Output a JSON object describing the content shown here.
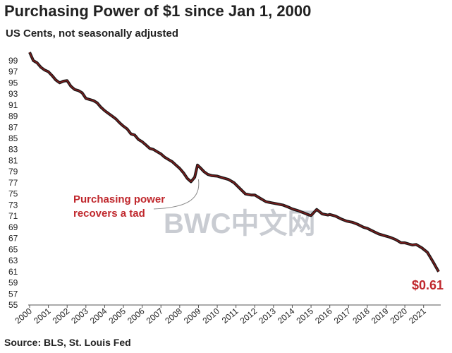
{
  "chart_data": {
    "type": "line",
    "title": "Purchasing  Power of $1 since Jan 1, 2000",
    "subtitle": "US Cents, not seasonally adjusted",
    "source": "Source: BLS, St. Louis Fed",
    "xlabel": "",
    "ylabel": "",
    "xlim": [
      2000,
      2021.8
    ],
    "ylim": [
      55,
      100
    ],
    "grid": false,
    "y_ticks": [
      "99",
      "97",
      "95",
      "93",
      "91",
      "89",
      "87",
      "85",
      "83",
      "81",
      "79",
      "77",
      "75",
      "73",
      "71",
      "69",
      "67",
      "65",
      "63",
      "61",
      "59",
      "57",
      "55"
    ],
    "x_ticks": [
      "2000",
      "2001",
      "2002",
      "2003",
      "2004",
      "2005",
      "2006",
      "2007",
      "2008",
      "2009",
      "2010",
      "2011",
      "2012",
      "2013",
      "2014",
      "2015",
      "2016",
      "2017",
      "2018",
      "2019",
      "2020",
      "2021"
    ],
    "series": [
      {
        "name": "Purchasing power of $1",
        "color": "#8b1a1a",
        "x": [
          2000.0,
          2000.2,
          2000.4,
          2000.6,
          2000.8,
          2001.0,
          2001.2,
          2001.4,
          2001.6,
          2001.8,
          2002.0,
          2002.2,
          2002.4,
          2002.6,
          2002.8,
          2003.0,
          2003.2,
          2003.4,
          2003.6,
          2003.8,
          2004.0,
          2004.2,
          2004.4,
          2004.6,
          2004.8,
          2005.0,
          2005.2,
          2005.4,
          2005.6,
          2005.8,
          2006.0,
          2006.2,
          2006.4,
          2006.6,
          2006.8,
          2007.0,
          2007.2,
          2007.4,
          2007.6,
          2007.8,
          2008.0,
          2008.2,
          2008.4,
          2008.6,
          2008.8,
          2008.95,
          2009.1,
          2009.3,
          2009.5,
          2009.7,
          2010.0,
          2010.3,
          2010.6,
          2010.9,
          2011.2,
          2011.5,
          2011.8,
          2012.0,
          2012.3,
          2012.6,
          2012.9,
          2013.2,
          2013.5,
          2013.8,
          2014.0,
          2014.3,
          2014.6,
          2014.9,
          2015.0,
          2015.3,
          2015.6,
          2015.9,
          2016.0,
          2016.3,
          2016.6,
          2016.9,
          2017.2,
          2017.5,
          2017.8,
          2018.0,
          2018.3,
          2018.6,
          2018.9,
          2019.2,
          2019.5,
          2019.8,
          2020.0,
          2020.2,
          2020.4,
          2020.6,
          2020.9,
          2021.2,
          2021.5,
          2021.8
        ],
        "values": [
          100.5,
          99.0,
          98.6,
          97.8,
          97.3,
          97.0,
          96.3,
          95.5,
          95.0,
          95.3,
          95.4,
          94.4,
          93.8,
          93.6,
          93.2,
          92.2,
          92.0,
          91.8,
          91.4,
          90.6,
          90.0,
          89.5,
          89.0,
          88.5,
          87.8,
          87.2,
          86.7,
          85.8,
          85.6,
          84.8,
          84.4,
          83.8,
          83.2,
          83.0,
          82.6,
          82.2,
          81.6,
          81.2,
          80.8,
          80.2,
          79.6,
          78.8,
          77.8,
          77.2,
          78.0,
          80.2,
          79.7,
          79.0,
          78.5,
          78.3,
          78.2,
          77.9,
          77.6,
          77.0,
          76.0,
          75.0,
          74.8,
          74.8,
          74.2,
          73.6,
          73.4,
          73.2,
          73.0,
          72.6,
          72.3,
          72.0,
          71.6,
          71.2,
          71.1,
          72.2,
          71.4,
          71.2,
          71.3,
          71.0,
          70.5,
          70.1,
          69.9,
          69.5,
          69.0,
          68.8,
          68.3,
          67.8,
          67.5,
          67.2,
          66.8,
          66.2,
          66.2,
          66.0,
          65.8,
          65.9,
          65.3,
          64.5,
          62.8,
          61.0
        ]
      }
    ],
    "annotations": [
      {
        "line1": "Purchasing power",
        "line2": "recovers a tad",
        "color": "#c0282d"
      },
      {
        "end_label": "$0.61",
        "color": "#c0282d"
      }
    ],
    "watermark": "BWC中文网"
  }
}
